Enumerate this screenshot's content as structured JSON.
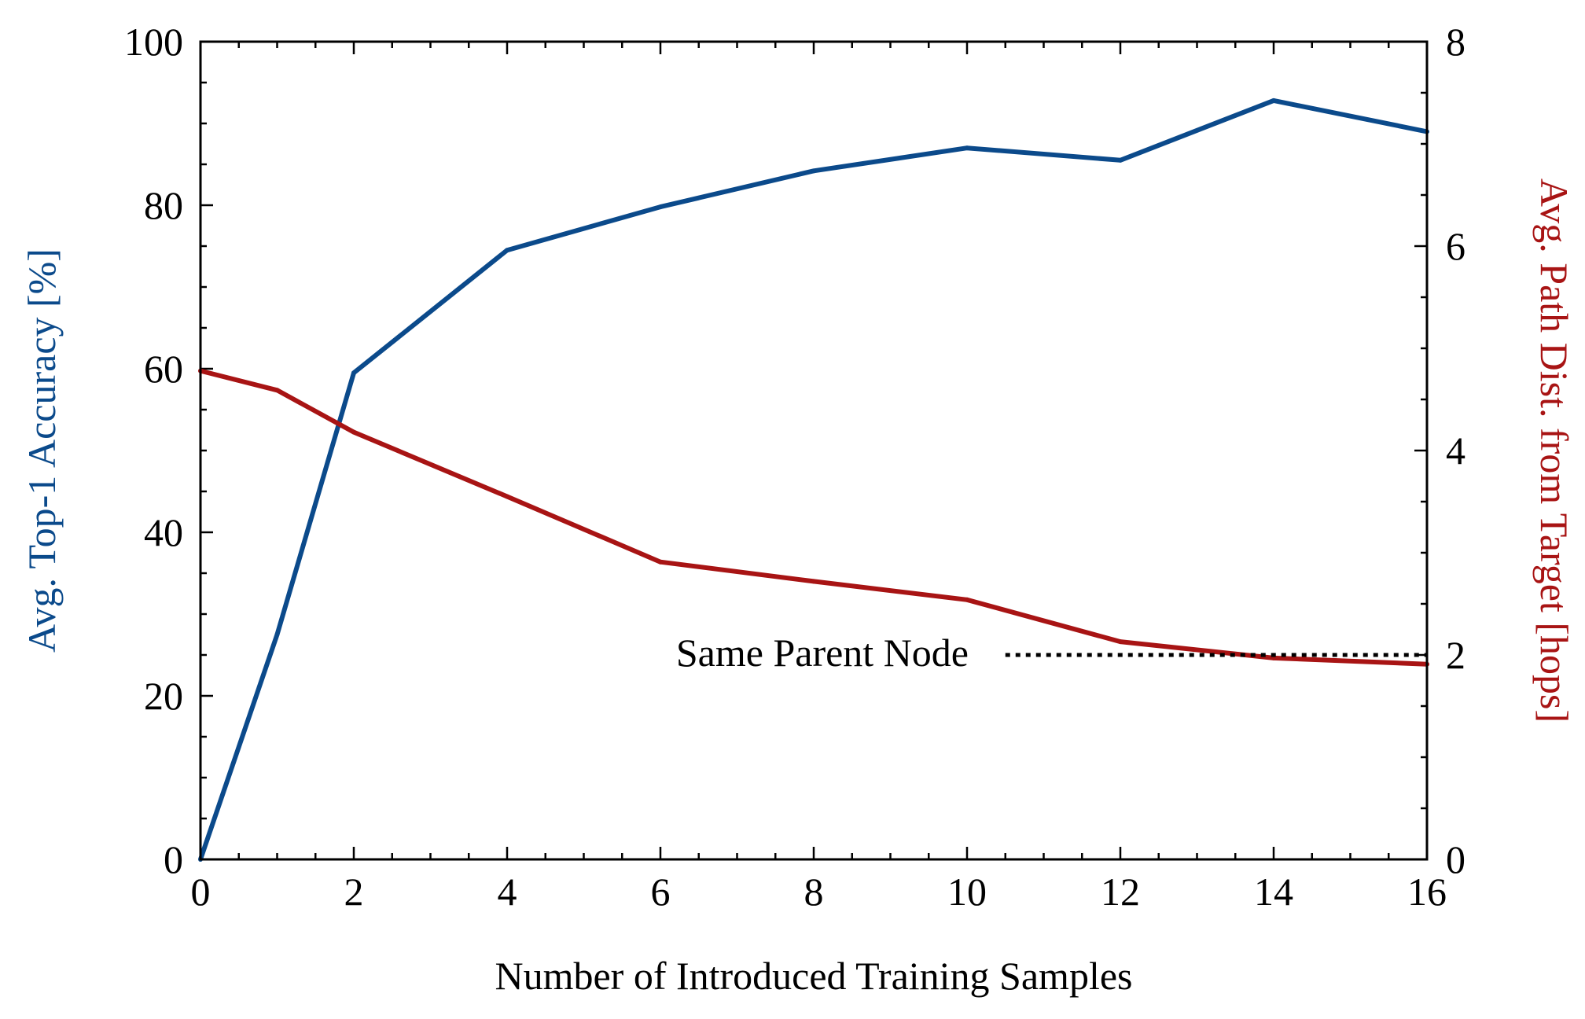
{
  "chart_data": {
    "type": "line",
    "xlabel": "Number of Introduced Training Samples",
    "ylabel_left": "Avg. Top-1 Accuracy [%]",
    "ylabel_right": "Avg. Path Dist. from Target [hops]",
    "xlim": [
      0,
      16
    ],
    "ylim_left": [
      0,
      100
    ],
    "ylim_right": [
      0,
      8
    ],
    "x_ticks": [
      "0",
      "2",
      "4",
      "6",
      "8",
      "10",
      "12",
      "14",
      "16"
    ],
    "y_left_ticks": [
      "0",
      "20",
      "40",
      "60",
      "80",
      "100"
    ],
    "y_right_ticks": [
      "0",
      "2",
      "4",
      "6",
      "8"
    ],
    "series": [
      {
        "name": "Avg. Top-1 Accuracy",
        "axis": "left",
        "color": "#0b4a8b",
        "x": [
          0,
          1,
          2,
          4,
          6,
          8,
          10,
          12,
          14,
          16
        ],
        "values": [
          0,
          27.5,
          59.5,
          74.5,
          79.8,
          84.2,
          87.0,
          85.5,
          92.8,
          89.0
        ]
      },
      {
        "name": "Avg. Path Dist. from Target",
        "axis": "right",
        "color": "#a81414",
        "x": [
          0,
          1,
          2,
          4,
          6,
          8,
          10,
          12,
          14,
          16
        ],
        "values": [
          4.78,
          4.59,
          4.18,
          3.55,
          2.91,
          2.72,
          2.54,
          2.13,
          1.97,
          1.91
        ]
      }
    ],
    "reference_line": {
      "label": "Same Parent Node",
      "axis": "right",
      "value": 2,
      "x_start": 10.5,
      "x_end": 16,
      "style": "dotted",
      "color": "#000000"
    },
    "grid": false
  }
}
